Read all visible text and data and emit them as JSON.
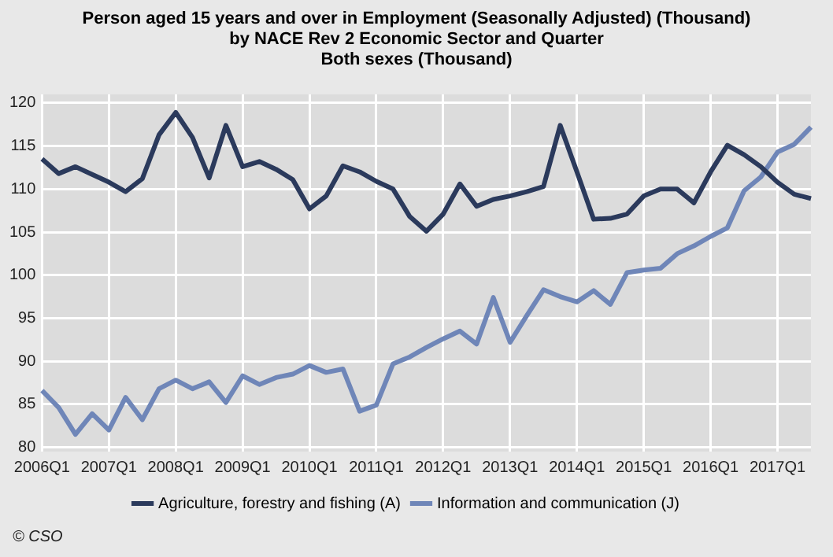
{
  "chart_data": {
    "type": "line",
    "title": "Person aged 15 years and over in Employment (Seasonally Adjusted) (Thousand)\nby NACE Rev 2 Economic Sector and Quarter\nBoth sexes (Thousand)",
    "categories": [
      "2006Q1",
      null,
      null,
      null,
      "2007Q1",
      null,
      null,
      null,
      "2008Q1",
      null,
      null,
      null,
      "2009Q1",
      null,
      null,
      null,
      "2010Q1",
      null,
      null,
      null,
      "2011Q1",
      null,
      null,
      null,
      "2012Q1",
      null,
      null,
      null,
      "2013Q1",
      null,
      null,
      null,
      "2014Q1",
      null,
      null,
      null,
      "2015Q1",
      null,
      null,
      null,
      "2016Q1",
      null,
      null,
      null,
      "2017Q1",
      null,
      null
    ],
    "series": [
      {
        "name": "Agriculture, forestry and fishing (A)",
        "color": "#2b3a5c",
        "values": [
          113.5,
          111.8,
          112.6,
          111.7,
          110.8,
          109.7,
          111.2,
          116.3,
          118.9,
          116.0,
          111.3,
          117.4,
          112.6,
          113.2,
          112.3,
          111.1,
          107.7,
          109.2,
          112.7,
          112.0,
          110.9,
          110.0,
          106.8,
          105.1,
          107.1,
          110.6,
          108.0,
          108.8,
          109.2,
          109.7,
          110.3,
          117.4,
          112.0,
          106.5,
          106.6,
          107.1,
          109.2,
          110.0,
          110.0,
          108.4,
          112.0,
          115.1,
          114.0,
          112.6,
          110.8,
          109.4,
          108.9
        ]
      },
      {
        "name": "Information and communication (J)",
        "color": "#6f86b8",
        "values": [
          86.6,
          84.6,
          81.5,
          83.9,
          82.0,
          85.8,
          83.2,
          86.8,
          87.8,
          86.8,
          87.6,
          85.2,
          88.3,
          87.3,
          88.1,
          88.5,
          89.5,
          88.7,
          89.1,
          84.2,
          84.9,
          89.7,
          90.5,
          91.6,
          92.6,
          93.5,
          92.0,
          97.4,
          92.2,
          95.3,
          98.3,
          97.5,
          96.9,
          98.2,
          96.6,
          100.3,
          100.6,
          100.8,
          102.5,
          103.4,
          104.5,
          105.5,
          109.8,
          111.4,
          114.3,
          115.2,
          117.2
        ]
      }
    ],
    "ylim": [
      79.5,
      121
    ],
    "yticks": [
      80,
      85,
      90,
      95,
      100,
      105,
      110,
      115,
      120
    ],
    "grid": true,
    "legend": "bottom",
    "marker": "none",
    "line_style": "solid",
    "annotations": [
      "© CSO"
    ]
  }
}
